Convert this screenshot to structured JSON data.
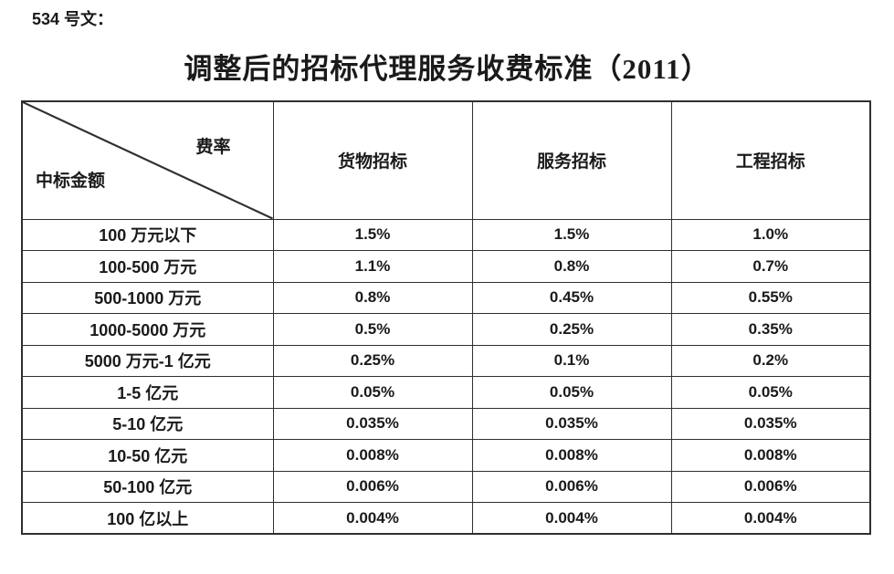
{
  "page": {
    "doc_label": "534 号文：",
    "title": "调整后的招标代理服务收费标准（2011）"
  },
  "table": {
    "corner": {
      "top_right": "费率",
      "bottom_left": "中标金额"
    },
    "columns": [
      "货物招标",
      "服务招标",
      "工程招标"
    ],
    "rows": [
      {
        "label": "100 万元以下",
        "values": [
          "1.5%",
          "1.5%",
          "1.0%"
        ]
      },
      {
        "label": "100-500 万元",
        "values": [
          "1.1%",
          "0.8%",
          "0.7%"
        ]
      },
      {
        "label": "500-1000 万元",
        "values": [
          "0.8%",
          "0.45%",
          "0.55%"
        ]
      },
      {
        "label": "1000-5000 万元",
        "values": [
          "0.5%",
          "0.25%",
          "0.35%"
        ]
      },
      {
        "label": "5000 万元-1 亿元",
        "values": [
          "0.25%",
          "0.1%",
          "0.2%"
        ]
      },
      {
        "label": "1-5 亿元",
        "values": [
          "0.05%",
          "0.05%",
          "0.05%"
        ]
      },
      {
        "label": "5-10 亿元",
        "values": [
          "0.035%",
          "0.035%",
          "0.035%"
        ]
      },
      {
        "label": "10-50 亿元",
        "values": [
          "0.008%",
          "0.008%",
          "0.008%"
        ]
      },
      {
        "label": "50-100 亿元",
        "values": [
          "0.006%",
          "0.006%",
          "0.006%"
        ]
      },
      {
        "label": "100 亿以上",
        "values": [
          "0.004%",
          "0.004%",
          "0.004%"
        ]
      }
    ]
  },
  "colors": {
    "text": "#1a1a1a",
    "border": "#2f2f2f",
    "background": "#ffffff"
  }
}
